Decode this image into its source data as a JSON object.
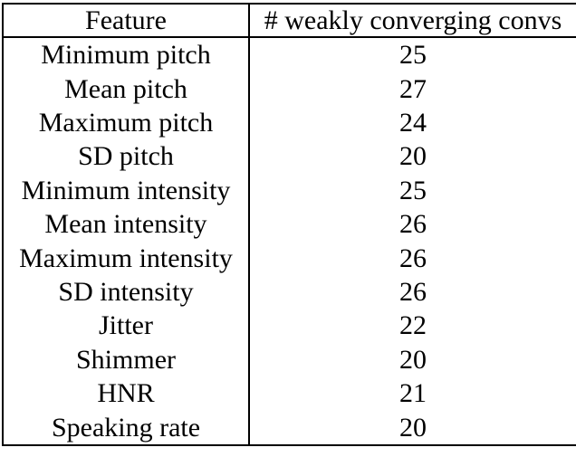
{
  "chart_data": {
    "type": "table",
    "columns": [
      "Feature",
      "# weakly converging convs"
    ],
    "rows": [
      [
        "Minimum pitch",
        25
      ],
      [
        "Mean pitch",
        27
      ],
      [
        "Maximum pitch",
        24
      ],
      [
        "SD pitch",
        20
      ],
      [
        "Minimum intensity",
        25
      ],
      [
        "Mean intensity",
        26
      ],
      [
        "Maximum intensity",
        26
      ],
      [
        "SD intensity",
        26
      ],
      [
        "Jitter",
        22
      ],
      [
        "Shimmer",
        20
      ],
      [
        "HNR",
        21
      ],
      [
        "Speaking rate",
        20
      ]
    ]
  },
  "style": {
    "border_color": "#000000",
    "text_color": "#000000",
    "background_color": "#ffffff"
  }
}
